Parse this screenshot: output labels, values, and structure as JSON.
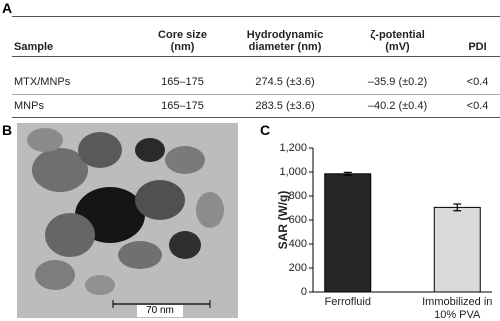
{
  "panels": {
    "a": "A",
    "b": "B",
    "c": "C"
  },
  "table": {
    "header": [
      "Sample",
      "Core size (nm)",
      "Hydrodynamic diameter (nm)",
      "ζ-potential (mV)",
      "PDI"
    ],
    "rows": [
      [
        "MTX/MNPs",
        "165–175",
        "274.5 (±3.6)",
        "–35.9 (±0.2)",
        "<0.4"
      ],
      [
        "MNPs",
        "165–175",
        "283.5 (±3.6)",
        "–40.2 (±0.4)",
        "<0.4"
      ]
    ]
  },
  "image": {
    "scale_bar": "70 nm"
  },
  "chart_data": {
    "type": "bar",
    "ylabel": "SAR (W/g)",
    "categories": [
      "Ferrofluid",
      "Immobilized in 10% PVA"
    ],
    "values": [
      985,
      705
    ],
    "errors": [
      12,
      28
    ],
    "colors": [
      "#262626",
      "#d9d9d9"
    ],
    "ylim": [
      0,
      1200
    ],
    "yticks": [
      0,
      200,
      400,
      600,
      800,
      {
        "value": 1000,
        "label": "1,000"
      },
      {
        "value": 1200,
        "label": "1,200"
      }
    ]
  }
}
